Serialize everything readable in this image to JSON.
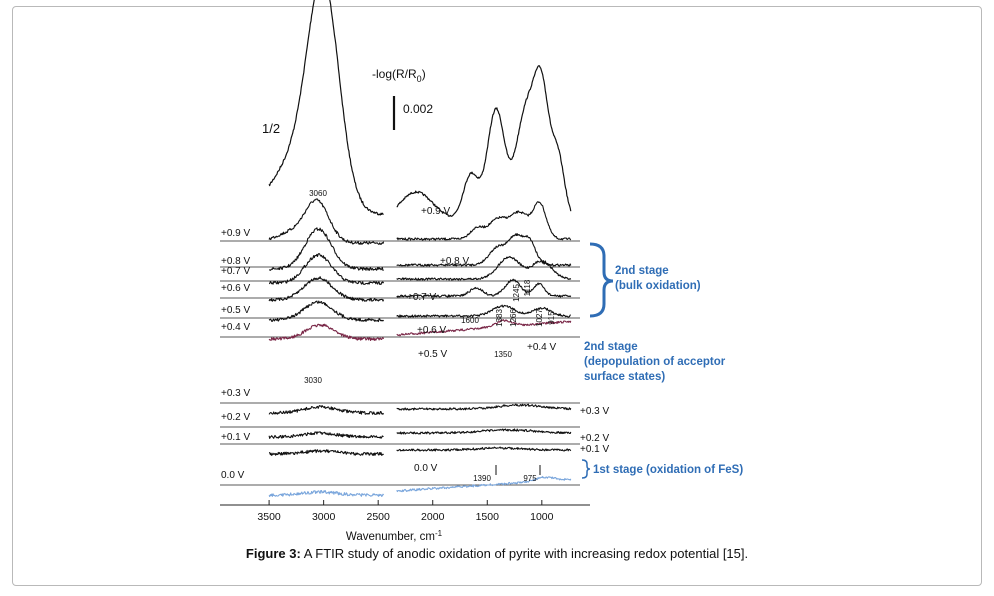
{
  "caption": {
    "label": "Figure 3:",
    "text": "A FTIR study of anodic oxidation of pyrite with increasing redox potential [15]."
  },
  "colors": {
    "black": "#111111",
    "maroon": "#7a2848",
    "lightblue": "#7aa6dc",
    "annotation_blue": "#2f6db5"
  },
  "chart_data": {
    "type": "line",
    "xlabel": "Wavenumber, cm",
    "xlabel_superscript": "-1",
    "x_reversed": true,
    "xlim": [
      3950,
      650
    ],
    "x_ticks": [
      3500,
      3000,
      2500,
      2000,
      1500,
      1000
    ],
    "x_tick_labels": [
      "3500",
      "3000",
      "2500",
      "2000",
      "1500",
      "1000"
    ],
    "ylabel_main": "-log(R/R",
    "ylabel_sub": "0",
    "ylabel_tail": ")",
    "scale_bar_label": "0.002",
    "scale_bar_value": 0.002,
    "half_scale_label": "1/2",
    "grid": false,
    "series": [
      {
        "name": "+0.9 V",
        "color": "black"
      },
      {
        "name": "+0.8 V",
        "color": "black"
      },
      {
        "name": "+0.7 V",
        "color": "black"
      },
      {
        "name": "+0.6 V",
        "color": "black"
      },
      {
        "name": "+0.5 V",
        "color": "black"
      },
      {
        "name": "+0.4 V",
        "color": "maroon"
      },
      {
        "name": "+0.3 V",
        "color": "black"
      },
      {
        "name": "+0.2 V",
        "color": "black"
      },
      {
        "name": "+0.1 V",
        "color": "black"
      },
      {
        "name": "0.0 V",
        "color": "lightblue"
      }
    ],
    "baseline_labels_left": [
      "+0.9 V",
      "+0.8 V",
      "+0.7 V",
      "+0.6 V",
      "+0.5 V",
      "+0.4 V",
      "+0.3 V",
      "+0.2 V",
      "+0.1 V",
      "0.0 V"
    ],
    "curve_labels": [
      "+0.9 V",
      "+0.8 V",
      "+0.7 V",
      "+0.6 V",
      "+0.5 V",
      "+0.4 V",
      "+0.3 V",
      "+0.2 V",
      "+0.1 V",
      "0.0 V"
    ],
    "peak_annotations": [
      "3060",
      "3030",
      "1600",
      "1383",
      "1266",
      "1245",
      "1118",
      "1027",
      "915",
      "1350",
      "1390",
      "975"
    ],
    "stage_annotations": {
      "stage2_bulk": [
        "2nd stage",
        "(bulk oxidation)"
      ],
      "stage2_depop": [
        "2nd stage",
        "(depopulation of acceptor",
        "surface states)"
      ],
      "stage1": "1st stage (oxidation of FeS)"
    }
  }
}
